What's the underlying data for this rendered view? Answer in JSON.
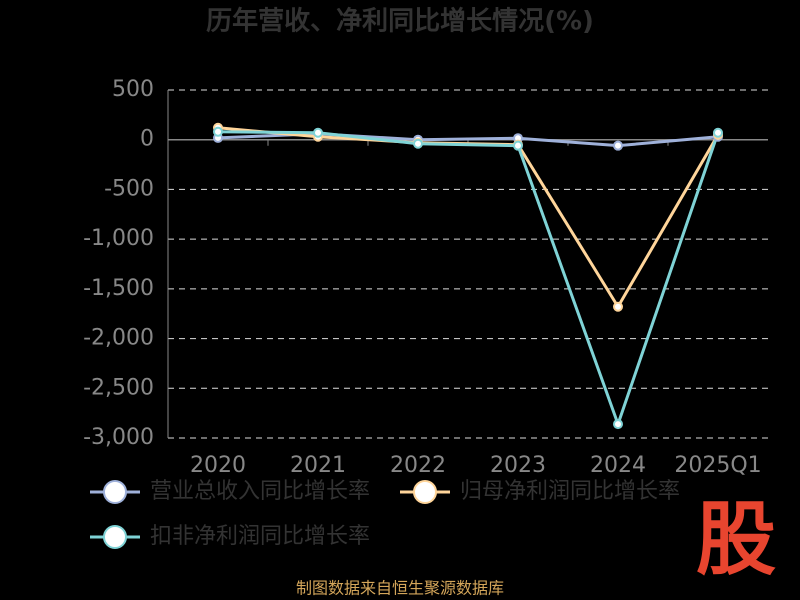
{
  "chart_data": {
    "type": "line",
    "title": "历年营收、净利同比增长情况(%)",
    "categories": [
      "2020",
      "2021",
      "2022",
      "2023",
      "2024",
      "2025Q1"
    ],
    "series": [
      {
        "name": "营业总收入同比增长率",
        "color": "#9fb1da",
        "values": [
          18,
          60,
          0,
          15,
          -60,
          30
        ]
      },
      {
        "name": "归母净利润同比增长率",
        "color": "#ffd59a",
        "values": [
          120,
          30,
          -30,
          -50,
          -1680,
          50
        ]
      },
      {
        "name": "扣非净利润同比增长率",
        "color": "#7fd3d6",
        "values": [
          80,
          70,
          -40,
          -60,
          -2860,
          70
        ]
      }
    ],
    "ylim": [
      -3000,
      500
    ],
    "yticks": [
      500,
      0,
      -500,
      {
        "value": -1000,
        "label": "-1,000"
      },
      {
        "value": -1500,
        "label": "-1,500"
      },
      {
        "value": -2000,
        "label": "-2,000"
      },
      {
        "value": -2500,
        "label": "-2,500"
      },
      {
        "value": -3000,
        "label": "-3,000"
      }
    ],
    "grid": true,
    "source": "制图数据来自恒生聚源数据库",
    "logo": "股"
  }
}
